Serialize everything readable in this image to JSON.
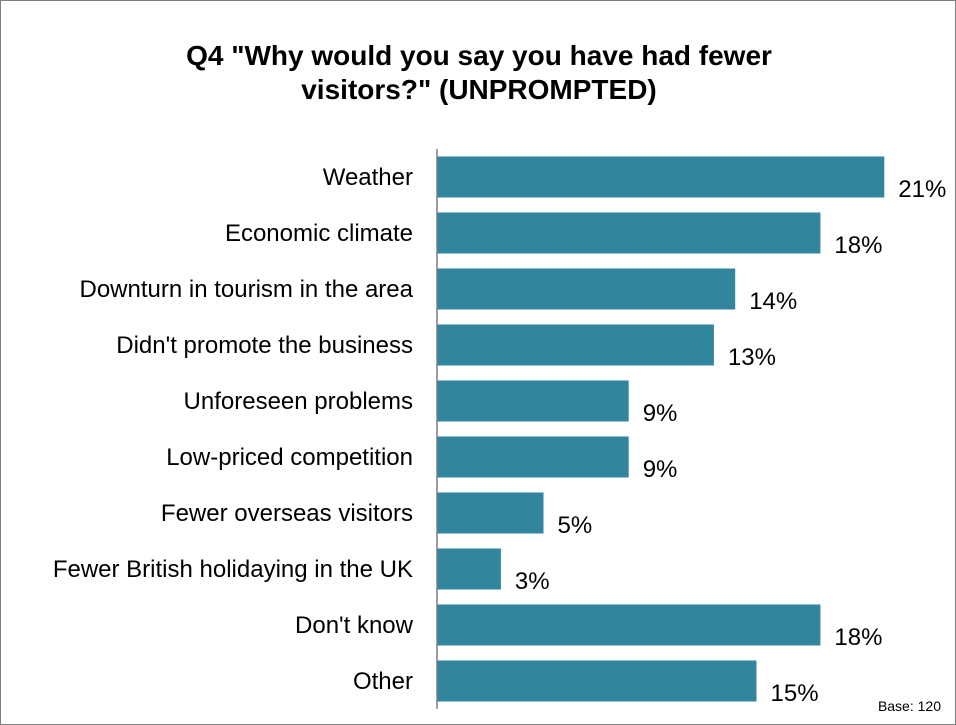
{
  "chart_data": {
    "type": "bar",
    "orientation": "horizontal",
    "title_lines": [
      "Q4 \"Why would you say you have had fewer",
      "visitors?\" (UNPROMPTED)"
    ],
    "categories": [
      "Weather",
      "Economic climate",
      "Downturn in tourism in the area",
      "Didn't promote the business",
      "Unforeseen problems",
      "Low-priced competition",
      "Fewer overseas visitors",
      "Fewer British holidaying in the UK",
      "Don't know",
      "Other"
    ],
    "values": [
      21,
      18,
      14,
      13,
      9,
      9,
      5,
      3,
      18,
      15
    ],
    "value_labels": [
      "21%",
      "18%",
      "14%",
      "13%",
      "9%",
      "9%",
      "5%",
      "3%",
      "18%",
      "15%"
    ],
    "unit": "%",
    "bar_color": "#31859c",
    "grid": false,
    "legend": "none"
  },
  "footnote": "Base: 120"
}
